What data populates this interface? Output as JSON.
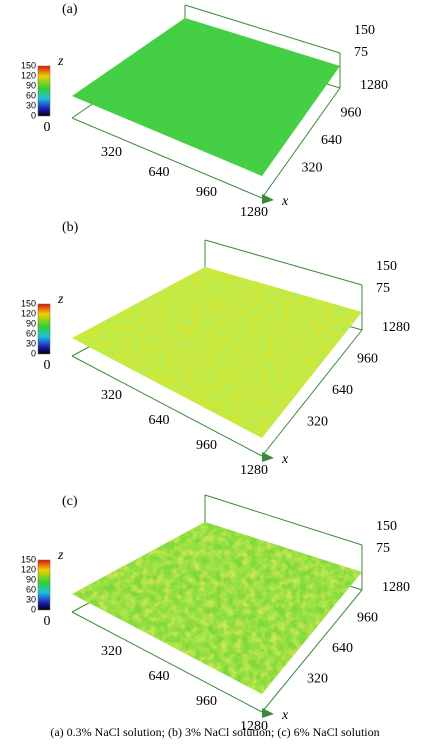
{
  "panels": [
    {
      "label": "(a)",
      "z_axis": "z",
      "x_axis": "x",
      "colorbar_ticks": [
        "150",
        "120",
        "90",
        "60",
        "30",
        "0"
      ],
      "x_ticks": [
        "0",
        "320",
        "640",
        "960",
        "1280"
      ],
      "y_ticks": [
        "320",
        "640",
        "960",
        "1280"
      ],
      "z_ticks": [
        "150",
        "75"
      ]
    },
    {
      "label": "(b)",
      "z_axis": "z",
      "x_axis": "x",
      "colorbar_ticks": [
        "150",
        "120",
        "90",
        "60",
        "30",
        "0"
      ],
      "x_ticks": [
        "0",
        "320",
        "640",
        "960",
        "1280"
      ],
      "y_ticks": [
        "320",
        "640",
        "960",
        "1280"
      ],
      "z_ticks": [
        "150",
        "75"
      ]
    },
    {
      "label": "(c)",
      "z_axis": "z",
      "x_axis": "x",
      "colorbar_ticks": [
        "150",
        "120",
        "90",
        "60",
        "30",
        "0"
      ],
      "x_ticks": [
        "0",
        "320",
        "640",
        "960",
        "1280"
      ],
      "y_ticks": [
        "320",
        "640",
        "960",
        "1280"
      ],
      "z_ticks": [
        "150",
        "75"
      ]
    }
  ],
  "caption": "(a) 0.3% NaCl solution; (b) 3% NaCl solution; (c) 6% NaCl solution"
}
